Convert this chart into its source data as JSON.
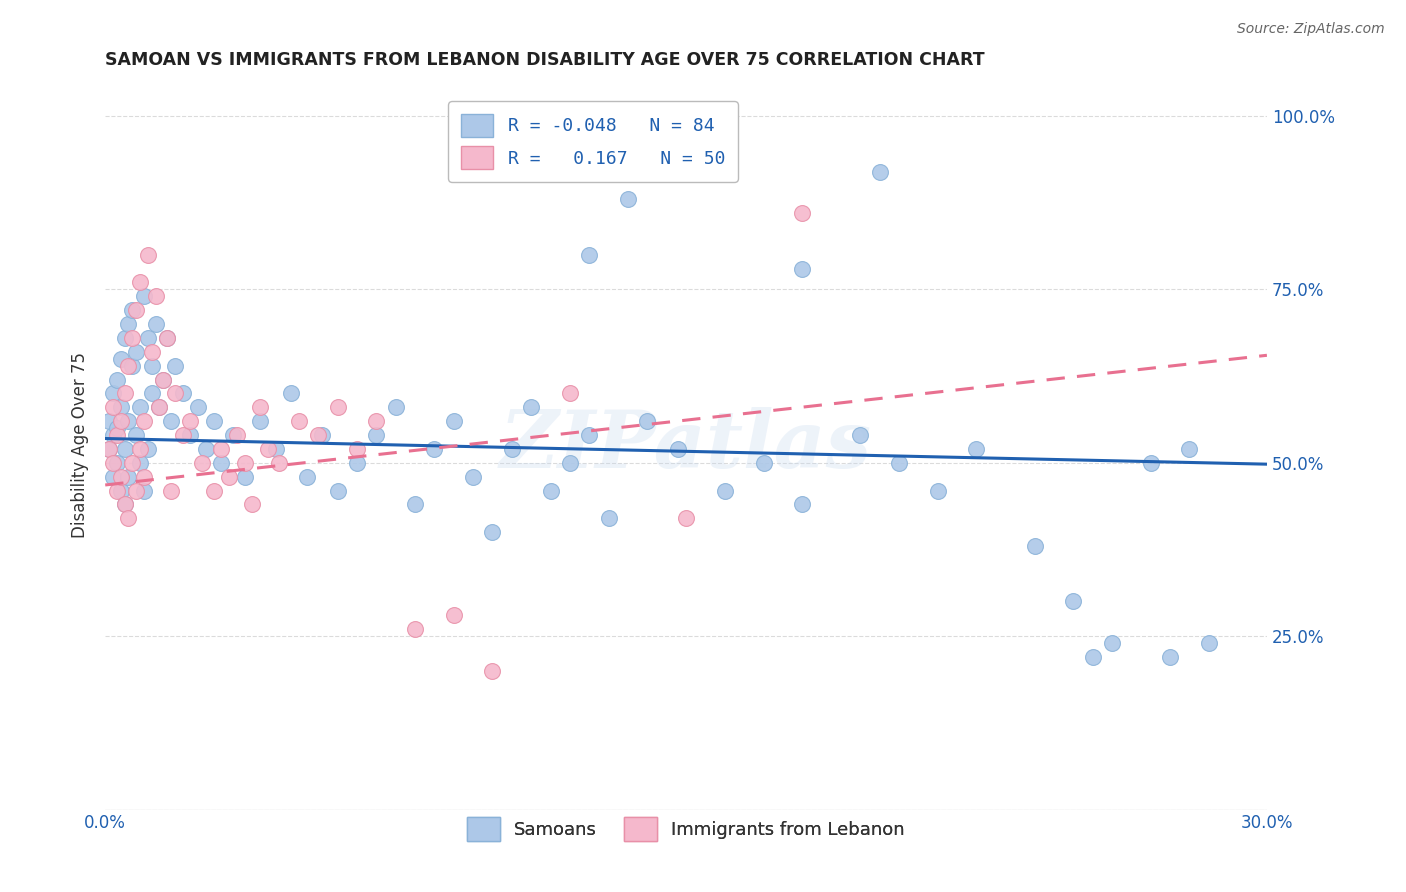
{
  "title": "SAMOAN VS IMMIGRANTS FROM LEBANON DISABILITY AGE OVER 75 CORRELATION CHART",
  "source": "Source: ZipAtlas.com",
  "ylabel_label": "Disability Age Over 75",
  "x_min": 0.0,
  "x_max": 0.3,
  "y_min": 0.0,
  "y_max": 1.05,
  "x_ticks": [
    0.0,
    0.05,
    0.1,
    0.15,
    0.2,
    0.25,
    0.3
  ],
  "y_ticks": [
    0.0,
    0.25,
    0.5,
    0.75,
    1.0
  ],
  "grid_color": "#cccccc",
  "background_color": "#ffffff",
  "samoans_color": "#adc8e8",
  "samoans_edge_color": "#8ab2d8",
  "lebanon_color": "#f5b8cc",
  "lebanon_edge_color": "#e890a8",
  "trend_samoan_color": "#2060b0",
  "trend_lebanon_color": "#e87090",
  "R_samoan": -0.048,
  "N_samoan": 84,
  "R_lebanon": 0.167,
  "N_lebanon": 50,
  "watermark": "ZIPatlas",
  "trend_samoan_y0": 0.535,
  "trend_samoan_y1": 0.498,
  "trend_lebanon_y0": 0.468,
  "trend_lebanon_y1": 0.655,
  "samoans_x": [
    0.001,
    0.001,
    0.002,
    0.002,
    0.002,
    0.003,
    0.003,
    0.003,
    0.004,
    0.004,
    0.004,
    0.005,
    0.005,
    0.005,
    0.006,
    0.006,
    0.006,
    0.007,
    0.007,
    0.008,
    0.008,
    0.009,
    0.009,
    0.01,
    0.01,
    0.011,
    0.011,
    0.012,
    0.012,
    0.013,
    0.014,
    0.015,
    0.016,
    0.017,
    0.018,
    0.02,
    0.022,
    0.024,
    0.026,
    0.028,
    0.03,
    0.033,
    0.036,
    0.04,
    0.044,
    0.048,
    0.052,
    0.056,
    0.06,
    0.065,
    0.07,
    0.075,
    0.08,
    0.085,
    0.09,
    0.095,
    0.1,
    0.105,
    0.11,
    0.115,
    0.12,
    0.125,
    0.13,
    0.14,
    0.148,
    0.16,
    0.17,
    0.18,
    0.195,
    0.205,
    0.215,
    0.225,
    0.24,
    0.25,
    0.255,
    0.26,
    0.27,
    0.275,
    0.28,
    0.285,
    0.125,
    0.135,
    0.18,
    0.2
  ],
  "samoans_y": [
    0.52,
    0.56,
    0.48,
    0.54,
    0.6,
    0.5,
    0.55,
    0.62,
    0.46,
    0.58,
    0.65,
    0.52,
    0.68,
    0.44,
    0.56,
    0.7,
    0.48,
    0.64,
    0.72,
    0.54,
    0.66,
    0.5,
    0.58,
    0.74,
    0.46,
    0.68,
    0.52,
    0.6,
    0.64,
    0.7,
    0.58,
    0.62,
    0.68,
    0.56,
    0.64,
    0.6,
    0.54,
    0.58,
    0.52,
    0.56,
    0.5,
    0.54,
    0.48,
    0.56,
    0.52,
    0.6,
    0.48,
    0.54,
    0.46,
    0.5,
    0.54,
    0.58,
    0.44,
    0.52,
    0.56,
    0.48,
    0.4,
    0.52,
    0.58,
    0.46,
    0.5,
    0.54,
    0.42,
    0.56,
    0.52,
    0.46,
    0.5,
    0.44,
    0.54,
    0.5,
    0.46,
    0.52,
    0.38,
    0.3,
    0.22,
    0.24,
    0.5,
    0.22,
    0.52,
    0.24,
    0.8,
    0.88,
    0.78,
    0.92
  ],
  "lebanon_x": [
    0.001,
    0.002,
    0.002,
    0.003,
    0.003,
    0.004,
    0.004,
    0.005,
    0.005,
    0.006,
    0.006,
    0.007,
    0.007,
    0.008,
    0.008,
    0.009,
    0.009,
    0.01,
    0.01,
    0.011,
    0.012,
    0.013,
    0.014,
    0.015,
    0.016,
    0.017,
    0.018,
    0.02,
    0.022,
    0.025,
    0.028,
    0.03,
    0.032,
    0.034,
    0.036,
    0.038,
    0.04,
    0.042,
    0.045,
    0.05,
    0.055,
    0.06,
    0.065,
    0.07,
    0.08,
    0.09,
    0.1,
    0.12,
    0.15,
    0.18
  ],
  "lebanon_y": [
    0.52,
    0.5,
    0.58,
    0.46,
    0.54,
    0.48,
    0.56,
    0.44,
    0.6,
    0.42,
    0.64,
    0.5,
    0.68,
    0.46,
    0.72,
    0.52,
    0.76,
    0.48,
    0.56,
    0.8,
    0.66,
    0.74,
    0.58,
    0.62,
    0.68,
    0.46,
    0.6,
    0.54,
    0.56,
    0.5,
    0.46,
    0.52,
    0.48,
    0.54,
    0.5,
    0.44,
    0.58,
    0.52,
    0.5,
    0.56,
    0.54,
    0.58,
    0.52,
    0.56,
    0.26,
    0.28,
    0.2,
    0.6,
    0.42,
    0.86
  ]
}
